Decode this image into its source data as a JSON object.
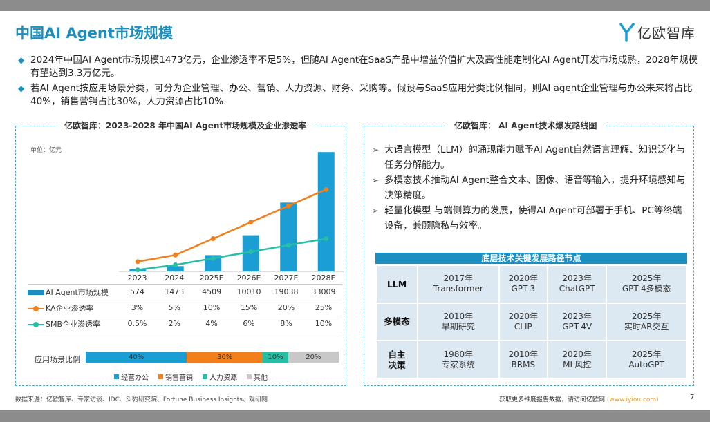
{
  "page": {
    "title": "中国AI Agent市场规模",
    "logo_text": "亿欧智库",
    "bullets": [
      "2024年中国AI Agent市场规模1473亿元，企业渗透率不足5%，但随AI Agent在SaaS产品中增益价值扩大及高性能定制化AI Agent开发市场成熟，2028年规模有望达到3.3万亿元。",
      "若AI Agent按应用场景分类，可分为企业管理、办公、营销、人力资源、财务、采购等。假设与SaaS应用分类比例相同，则AI agent企业管理与办公未来将占比40%，销售营销占比30%，人力资源占比10%"
    ],
    "source": "数据来源：亿欧智库、专家访谈、IDC、头豹研究院、Fortune Business Insights、观研网",
    "footer_text": "获取更多维度报告数据，请访问亿欧网",
    "footer_link": "(www.iyiou.com)",
    "page_number": "7"
  },
  "left_panel": {
    "title": "亿欧智库：2023-2028 年中国AI Agent市场规模及企业渗透率",
    "unit": "单位：亿元",
    "row_labels": [
      "AI Agent市场规模",
      "KA企业渗透率",
      "SMB企业渗透率"
    ],
    "table": {
      "years": [
        "2023",
        "2024",
        "2025E",
        "2026E",
        "2027E",
        "2028E"
      ],
      "market": [
        "574",
        "1473",
        "4509",
        "10010",
        "19038",
        "33009"
      ],
      "ka": [
        "3%",
        "5%",
        "10%",
        "15%",
        "20%",
        "25%"
      ],
      "smb": [
        "0.5%",
        "2%",
        "4%",
        "6%",
        "8%",
        "10%"
      ]
    },
    "scene": {
      "label": "应用场景比例",
      "segments": [
        {
          "label": "40%",
          "value": 40,
          "color": "#1a9ed4",
          "name": "经营办公"
        },
        {
          "label": "30%",
          "value": 30,
          "color": "#f07f1c",
          "name": "销售营销"
        },
        {
          "label": "10%",
          "value": 10,
          "color": "#26bfa6",
          "name": "人力资源"
        },
        {
          "label": "20%",
          "value": 20,
          "color": "#c8c8c8",
          "name": "其他"
        }
      ]
    }
  },
  "chart_data": {
    "type": "bar",
    "categories": [
      "2023",
      "2024",
      "2025E",
      "2026E",
      "2027E",
      "2028E"
    ],
    "series": [
      {
        "name": "AI Agent市场规模",
        "type": "bar",
        "values": [
          574,
          1473,
          4509,
          10010,
          19038,
          33009
        ],
        "color": "#1a9ed4"
      },
      {
        "name": "KA企业渗透率",
        "type": "line",
        "values": [
          3,
          5,
          10,
          15,
          20,
          25
        ],
        "color": "#f07f1c"
      },
      {
        "name": "SMB企业渗透率",
        "type": "line",
        "values": [
          0.5,
          2,
          4,
          6,
          8,
          10
        ],
        "color": "#26bfa6"
      }
    ],
    "title": "亿欧智库：2023-2028 年中国AI Agent市场规模及企业渗透率",
    "ylabel": "单位：亿元",
    "ylim": [
      0,
      34000
    ],
    "y2lim": [
      0,
      27
    ]
  },
  "right_panel": {
    "title": "亿欧智库：  AI Agent技术爆发路线图",
    "bullets": [
      "大语言模型（LLM）的涌现能力赋予AI Agent自然语言理解、知识泛化与任务分解能力。",
      "多模态技术推动AI Agent整合文本、图像、语音等输入，提升环境感知与决策精度。",
      "轻量化模型 与端侧算力的发展，使得AI Agent可部署于手机、PC等终端设备，兼顾隐私与效率。"
    ],
    "roadmap_title": "底层技术关键发展路径节点",
    "roadmap": [
      {
        "label": "LLM",
        "nodes": [
          [
            "2017年",
            "Transformer"
          ],
          [
            "2020年",
            "GPT-3"
          ],
          [
            "2023年",
            "ChatGPT"
          ],
          [
            "2025年",
            "GPT-4多模态"
          ]
        ]
      },
      {
        "label": "多模态",
        "nodes": [
          [
            "2010年",
            "早期研究"
          ],
          [
            "2020年",
            "CLIP"
          ],
          [
            "2023年",
            "GPT-4V"
          ],
          [
            "2025年",
            "实时AR交互"
          ]
        ]
      },
      {
        "label": "自主决策",
        "nodes": [
          [
            "1980年",
            "专家系统"
          ],
          [
            "2010年",
            "BRMS"
          ],
          [
            "2020年",
            "ML风控"
          ],
          [
            "2025年",
            "AutoGPT"
          ]
        ]
      }
    ]
  }
}
